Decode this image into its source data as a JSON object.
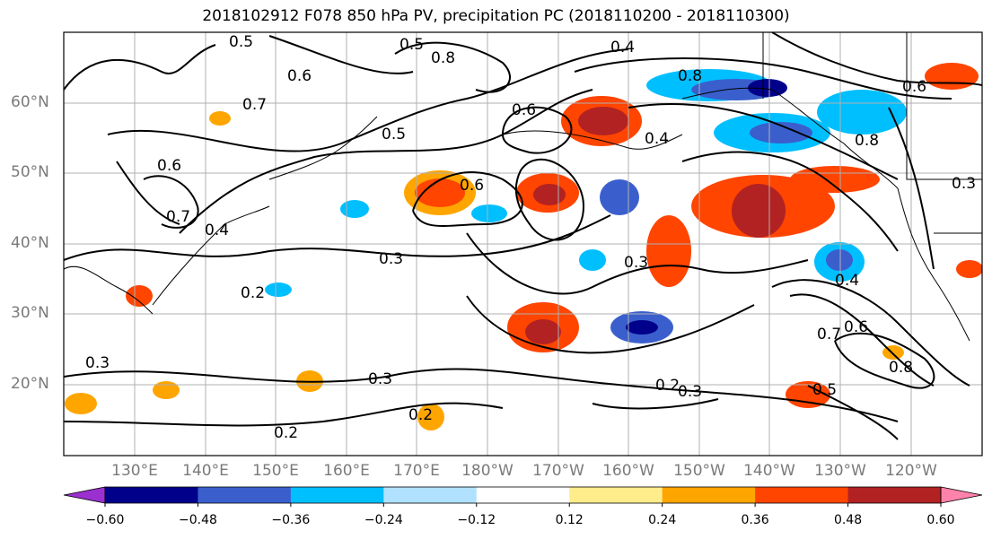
{
  "title": "2018102912 F078 850 hPa PV, precipitation PC (2018110200 - 2018110300)",
  "lat_labels": [
    "60°N",
    "50°N",
    "40°N",
    "30°N",
    "20°N"
  ],
  "lon_labels": [
    "130°E",
    "140°E",
    "150°E",
    "160°E",
    "170°E",
    "180°W",
    "170°W",
    "160°W",
    "150°W",
    "140°W",
    "130°W",
    "120°W"
  ],
  "contour_labels": [
    "0.5",
    "0.5",
    "0.4",
    "0.8",
    "0.6",
    "0.8",
    "0.6",
    "0.7",
    "0.6",
    "0.4",
    "0.5",
    "0.6",
    "0.8",
    "0.7",
    "0.6",
    "0.4",
    "0.3",
    "0.2",
    "0.3",
    "0.3",
    "0.2",
    "0.2",
    "0.3",
    "0.2",
    "0.3",
    "0.8",
    "0.7",
    "0.6",
    "0.5",
    "0.4",
    "0.3"
  ],
  "colorbar": {
    "ticks": [
      "−0.60",
      "−0.48",
      "−0.36",
      "−0.24",
      "−0.12",
      "0.12",
      "0.24",
      "0.36",
      "0.48",
      "0.60"
    ],
    "colors": [
      "#9b30d0",
      "#00008b",
      "#3a5fcd",
      "#00bfff",
      "#b0e2ff",
      "#ffffff",
      "#ffec8b",
      "#ffa500",
      "#ff4500",
      "#b22222",
      "#ff82ab"
    ]
  }
}
